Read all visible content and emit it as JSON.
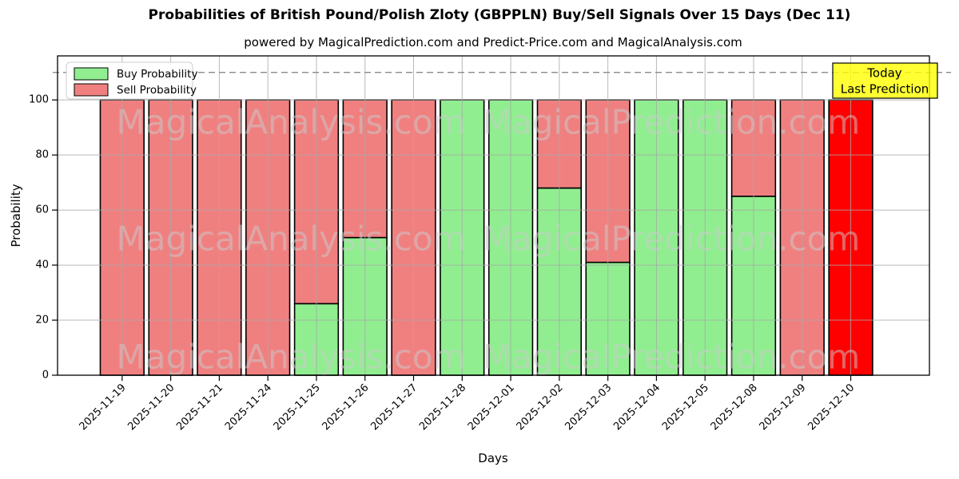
{
  "title": "Probabilities of British Pound/Polish Zloty (GBPPLN) Buy/Sell Signals Over 15 Days (Dec 11)",
  "subtitle": "powered by MagicalPrediction.com and Predict-Price.com and MagicalAnalysis.com",
  "watermarks": {
    "left": "MagicalAnalysis.com",
    "right": "MagicalPrediction.com"
  },
  "annotation": {
    "line1": "Today",
    "line2": "Last Prediction",
    "bg": "#ffff00"
  },
  "colors": {
    "buy": "#90ee90",
    "sell": "#f08080",
    "today_bar": "#ff0000",
    "edge": "#000000",
    "grid": "#a8a8a8",
    "frame": "#000000",
    "watermark": "#cccccc",
    "dashed_line": "#8a8a8a"
  },
  "chart_data": {
    "type": "bar",
    "stacked": true,
    "title": "Probabilities of British Pound/Polish Zloty (GBPPLN) Buy/Sell Signals Over 15 Days (Dec 11)",
    "xlabel": "Days",
    "ylabel": "Probability",
    "categories": [
      "2025-11-19",
      "2025-11-20",
      "2025-11-21",
      "2025-11-24",
      "2025-11-25",
      "2025-11-26",
      "2025-11-27",
      "2025-11-28",
      "2025-12-01",
      "2025-12-02",
      "2025-12-03",
      "2025-12-04",
      "2025-12-05",
      "2025-12-08",
      "2025-12-09",
      "2025-12-10"
    ],
    "series": [
      {
        "name": "Buy Probability",
        "color": "#90ee90",
        "values": [
          0,
          0,
          0,
          0,
          26,
          50,
          0,
          100,
          100,
          68,
          41,
          100,
          100,
          65,
          0,
          0
        ]
      },
      {
        "name": "Sell Probability",
        "color": "#f08080",
        "values": [
          100,
          100,
          100,
          100,
          74,
          50,
          100,
          0,
          0,
          32,
          59,
          0,
          0,
          35,
          100,
          100
        ]
      }
    ],
    "yticks": [
      0,
      20,
      40,
      60,
      80,
      100
    ],
    "ylim": [
      0,
      116
    ],
    "dashed_line_y": 110,
    "today_index": 15,
    "legend_position": "upper left",
    "grid": true
  }
}
